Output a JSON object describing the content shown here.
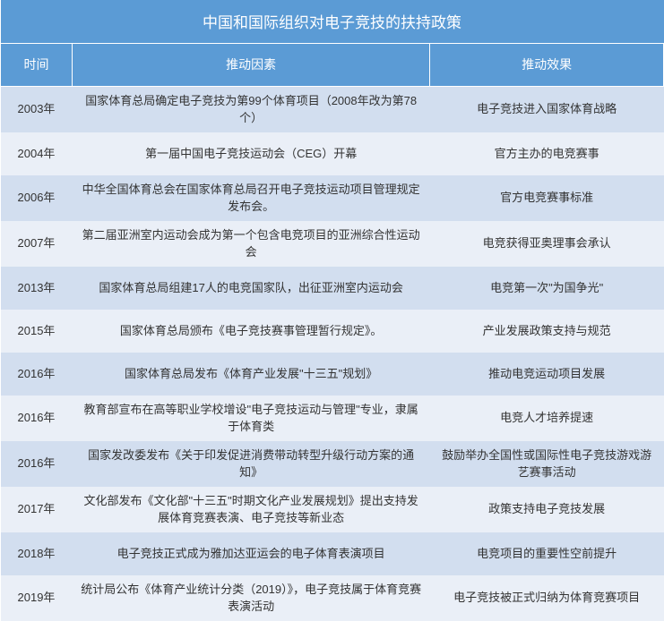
{
  "title": "中国和国际组织对电子竞技的扶持政策",
  "headers": {
    "time": "时间",
    "factor": "推动因素",
    "effect": "推动效果"
  },
  "colors": {
    "header_bg": "#5b9bd5",
    "header_text": "#ffffff",
    "row_even_bg": "#d2deef",
    "row_odd_bg": "#eaeff7",
    "text": "#333333"
  },
  "column_widths": {
    "time": 80,
    "factor": 400,
    "effect": 261
  },
  "font_sizes": {
    "title": 17,
    "header": 14,
    "body": 13
  },
  "rows": [
    {
      "time": "2003年",
      "factor": "国家体育总局确定电子竞技为第99个体育项目（2008年改为第78个）",
      "effect": "电子竞技进入国家体育战略"
    },
    {
      "time": "2004年",
      "factor": "第一届中国电子竞技运动会（CEG）开幕",
      "effect": "官方主办的电竞赛事"
    },
    {
      "time": "2006年",
      "factor": "中华全国体育总会在国家体育总局召开电子竞技运动项目管理规定发布会。",
      "effect": "官方电竞赛事标准"
    },
    {
      "time": "2007年",
      "factor": "第二届亚洲室内运动会成为第一个包含电竞项目的亚洲综合性运动会",
      "effect": "电竞获得亚奥理事会承认"
    },
    {
      "time": "2013年",
      "factor": "国家体育总局组建17人的电竞国家队，出征亚洲室内运动会",
      "effect": "电竞第一次\"为国争光\""
    },
    {
      "time": "2015年",
      "factor": "国家体育总局颁布《电子竞技赛事管理暂行规定》。",
      "effect": "产业发展政策支持与规范"
    },
    {
      "time": "2016年",
      "factor": "国家体育总局发布《体育产业发展\"十三五\"规划》",
      "effect": "推动电竞运动项目发展"
    },
    {
      "time": "2016年",
      "factor": "教育部宣布在高等职业学校增设\"电子竞技运动与管理\"专业，隶属于体育类",
      "effect": "电竞人才培养提速"
    },
    {
      "time": "2016年",
      "factor": "国家发改委发布《关于印发促进消费带动转型升级行动方案的通知》",
      "effect": "鼓励举办全国性或国际性电子竞技游戏游艺赛事活动"
    },
    {
      "time": "2017年",
      "factor": "文化部发布《文化部\"十三五\"时期文化产业发展规划》提出支持发展体育竞赛表演、电子竞技等新业态",
      "effect": "政策支持电子竞技发展"
    },
    {
      "time": "2018年",
      "factor": "电子竞技正式成为雅加达亚运会的电子体育表演项目",
      "effect": "电竞项目的重要性空前提升"
    },
    {
      "time": "2019年",
      "factor": "统计局公布《体育产业统计分类（2019）》，电子竞技属于体育竞赛表演活动",
      "effect": "电子竞技被正式归纳为体育竞赛项目"
    }
  ]
}
